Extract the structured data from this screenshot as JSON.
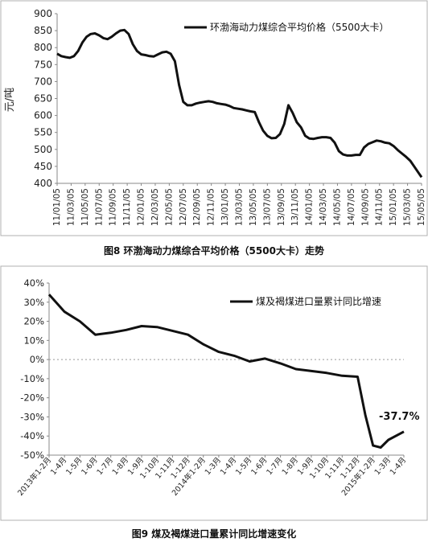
{
  "chart_data": [
    {
      "type": "line",
      "title": "",
      "ylabel": "元/吨",
      "xlabel": "",
      "ylim": [
        400,
        900
      ],
      "yticks": [
        400,
        450,
        500,
        550,
        600,
        650,
        700,
        750,
        800,
        850,
        900
      ],
      "x_ticks": [
        "11/01/05",
        "11/03/05",
        "11/05/05",
        "11/07/05",
        "11/09/05",
        "11/11/05",
        "12/01/05",
        "12/03/05",
        "12/05/05",
        "12/07/05",
        "12/09/05",
        "12/11/05",
        "13/01/05",
        "13/03/05",
        "13/05/05",
        "13/07/05",
        "13/09/05",
        "13/11/05",
        "14/01/05",
        "14/03/05",
        "14/05/05",
        "14/07/05",
        "14/09/05",
        "14/11/05",
        "15/01/05",
        "15/03/05",
        "15/05/05"
      ],
      "legend_position": "top-right",
      "grid": false,
      "series": [
        {
          "name": "环渤海动力煤综合平均价格（5500大卡）",
          "color": "#111111",
          "x": [
            0,
            0.3,
            0.6,
            0.9,
            1.2,
            1.5,
            1.8,
            2.1,
            2.4,
            2.7,
            3.0,
            3.3,
            3.6,
            3.9,
            4.2,
            4.5,
            4.8,
            5.1,
            5.4,
            5.7,
            6.0,
            6.3,
            6.6,
            6.9,
            7.2,
            7.5,
            7.8,
            8.1,
            8.4,
            8.7,
            9.0,
            9.3,
            9.6,
            9.9,
            10.2,
            10.5,
            10.8,
            11.1,
            11.4,
            11.7,
            12.0,
            12.3,
            12.6,
            12.9,
            13.2,
            13.5,
            13.8,
            14.1,
            14.4,
            14.7,
            15.0,
            15.3,
            15.6,
            15.9,
            16.2,
            16.5,
            16.8,
            17.1,
            17.4,
            17.7,
            18.0,
            18.3,
            18.6,
            18.9,
            19.2,
            19.5,
            19.8,
            20.1,
            20.4,
            20.7,
            21.0,
            21.3,
            21.6,
            21.9,
            22.2,
            22.5,
            22.8,
            23.1,
            23.4,
            23.7,
            24.0,
            24.3,
            24.6,
            24.9,
            25.2,
            25.5,
            25.8,
            26.0
          ],
          "values": [
            782,
            775,
            772,
            770,
            775,
            790,
            815,
            832,
            840,
            842,
            836,
            828,
            825,
            832,
            842,
            850,
            852,
            840,
            810,
            790,
            780,
            778,
            775,
            774,
            780,
            786,
            788,
            782,
            760,
            690,
            640,
            630,
            630,
            635,
            638,
            640,
            642,
            640,
            636,
            634,
            632,
            628,
            622,
            620,
            618,
            615,
            612,
            610,
            580,
            555,
            540,
            533,
            534,
            545,
            575,
            630,
            608,
            580,
            565,
            540,
            532,
            531,
            534,
            536,
            536,
            534,
            520,
            495,
            485,
            482,
            482,
            484,
            484,
            506,
            516,
            521,
            526,
            524,
            520,
            518,
            510,
            498,
            488,
            478,
            466,
            448,
            430,
            418
          ]
        }
      ]
    },
    {
      "type": "line",
      "title": "",
      "ylabel": "",
      "xlabel": "",
      "ylim": [
        -0.5,
        0.4
      ],
      "yticks": [
        -0.5,
        -0.4,
        -0.3,
        -0.2,
        -0.1,
        0,
        0.1,
        0.2,
        0.3,
        0.4
      ],
      "ytick_labels": [
        "-50%",
        "-40%",
        "-30%",
        "-20%",
        "-10%",
        "0%",
        "10%",
        "20%",
        "30%",
        "40%"
      ],
      "x_ticks": [
        "2013年1-2月",
        "1-4月",
        "1-5月",
        "1-6月",
        "1-7月",
        "1-8月",
        "1-9月",
        "1-10月",
        "1-11月",
        "1-12月",
        "2014年1-2月",
        "1-3月",
        "1-4月",
        "1-5月",
        "1-6月",
        "1-7月",
        "1-8月",
        "1-9月",
        "1-10月",
        "1-11月",
        "1-12月",
        "2015年1-2月",
        "1-3月",
        "1-4月"
      ],
      "legend_position": "top-right",
      "grid": false,
      "annotations": [
        {
          "text": "-37.7%"
        }
      ],
      "series": [
        {
          "name": "煤及褐煤进口量累计同比增速",
          "color": "#111111",
          "x": [
            0,
            1,
            2,
            3,
            4,
            5,
            6,
            7,
            8,
            9,
            10,
            11,
            12,
            13,
            14,
            15,
            16,
            17,
            18,
            19,
            20,
            20.5,
            21,
            21.5,
            22,
            23
          ],
          "values": [
            0.34,
            0.25,
            0.2,
            0.13,
            0.14,
            0.155,
            0.175,
            0.17,
            0.15,
            0.13,
            0.08,
            0.04,
            0.02,
            -0.01,
            0.005,
            -0.02,
            -0.05,
            -0.06,
            -0.07,
            -0.085,
            -0.09,
            -0.29,
            -0.45,
            -0.46,
            -0.42,
            -0.377
          ]
        }
      ]
    }
  ],
  "captions": {
    "fig8": "图8  环渤海动力煤综合平均价格（5500大卡）走势",
    "fig9": "图9    煤及褐煤进口量累计同比增速变化"
  }
}
